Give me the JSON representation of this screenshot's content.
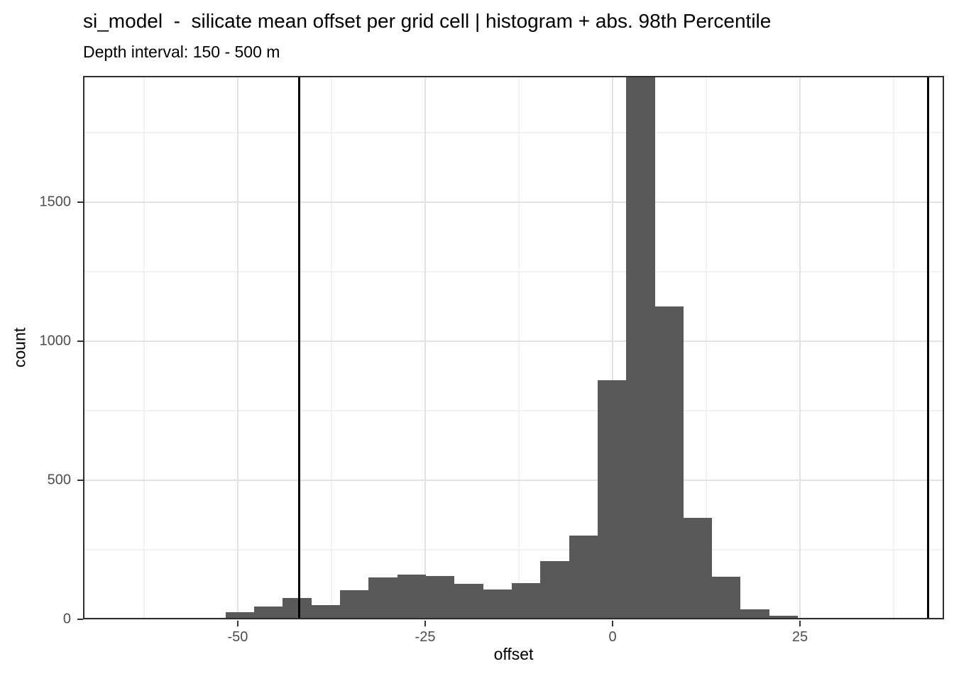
{
  "header": {
    "title": "si_model  -  silicate mean offset per grid cell | histogram + abs. 98th Percentile",
    "subtitle": "Depth interval: 150 - 500 m"
  },
  "chart_data": {
    "type": "bar",
    "subtype": "histogram",
    "title": "si_model  -  silicate mean offset per grid cell | histogram + abs. 98th Percentile",
    "subtitle": "Depth interval: 150 - 500 m",
    "xlabel": "offset",
    "ylabel": "count",
    "x_domain": [
      -70.64,
      44.22
    ],
    "y_domain": [
      0,
      1954
    ],
    "grid": true,
    "legend": "none",
    "bin_width": 3.818,
    "bin_edges": [
      -55.45,
      -51.63,
      -47.81,
      -44.0,
      -40.18,
      -36.36,
      -32.54,
      -28.72,
      -24.9,
      -21.09,
      -17.27,
      -13.45,
      -9.63,
      -5.81,
      -2.0,
      1.82,
      5.64,
      9.46,
      13.27,
      17.09,
      20.91,
      24.73
    ],
    "counts": [
      5,
      26,
      46,
      77,
      51,
      105,
      150,
      162,
      155,
      128,
      108,
      129,
      210,
      301,
      860,
      1954,
      1125,
      365,
      154,
      35,
      14
    ],
    "peak_bin_clipped": true,
    "peak_bin_note": "tallest bin (approx. offset 2 to 5.6) exceeds the visible axis and is clipped at the panel top (count > 1950)",
    "vlines": {
      "values": [
        -41.8,
        42.1
      ],
      "meaning": "abs. 98th Percentile",
      "color": "#000000"
    },
    "x_ticks": [
      {
        "value": -50,
        "label": "-50"
      },
      {
        "value": -25,
        "label": "-25"
      },
      {
        "value": 0,
        "label": "0"
      },
      {
        "value": 25,
        "label": "25"
      }
    ],
    "y_ticks": [
      {
        "value": 0,
        "label": "0"
      },
      {
        "value": 500,
        "label": "500"
      },
      {
        "value": 1000,
        "label": "1000"
      },
      {
        "value": 1500,
        "label": "1500"
      }
    ],
    "x_minor_gridlines": [
      -62.5,
      -37.5,
      -12.5,
      12.5,
      37.5
    ],
    "y_minor_gridlines": [
      250,
      750,
      1250,
      1750
    ],
    "colors": {
      "bar_fill": "#595959",
      "grid_major": "#e3e3e3",
      "grid_minor": "#f2f2f2",
      "panel_border": "#2e2e2e",
      "tick_mark": "#333333",
      "tick_label": "#4d4d4d",
      "text": "#000000",
      "background": "#ffffff"
    }
  }
}
